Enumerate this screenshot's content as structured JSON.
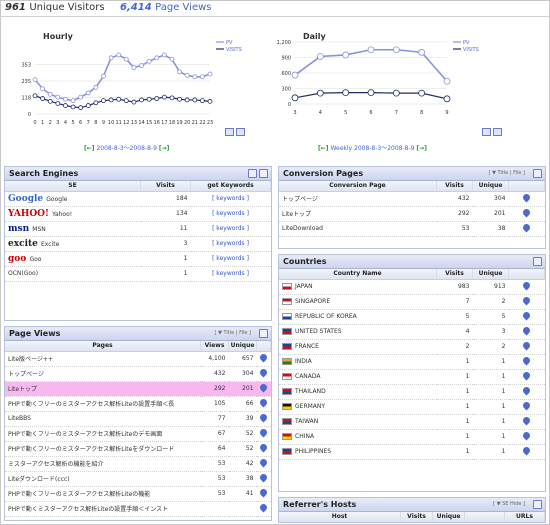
{
  "header": {
    "unique_visitors_count": "961",
    "unique_visitors_label": "Unique Visitors",
    "page_views_count": "6,414",
    "page_views_label": "Page Views"
  },
  "hourly_chart": {
    "title": "Hourly",
    "legend": [
      "PV",
      "VISITS"
    ],
    "range": "2008-8-3〜2008-8-9",
    "chart_data": {
      "type": "line",
      "x": [
        0,
        1,
        2,
        3,
        4,
        5,
        6,
        7,
        8,
        9,
        10,
        11,
        12,
        13,
        14,
        15,
        16,
        17,
        18,
        19,
        20,
        21,
        22,
        23
      ],
      "ylim": [
        0,
        470
      ],
      "yticks": [
        0,
        118,
        235,
        353
      ],
      "series": [
        {
          "name": "PV",
          "values": [
            245,
            180,
            140,
            120,
            105,
            95,
            120,
            150,
            190,
            270,
            400,
            420,
            390,
            330,
            345,
            375,
            400,
            420,
            390,
            300,
            275,
            265,
            265,
            285
          ]
        },
        {
          "name": "VISITS",
          "values": [
            130,
            110,
            90,
            75,
            60,
            50,
            45,
            60,
            80,
            95,
            100,
            105,
            95,
            85,
            100,
            105,
            110,
            120,
            115,
            105,
            100,
            100,
            95,
            90
          ]
        }
      ]
    }
  },
  "daily_chart": {
    "title": "Daily",
    "legend": [
      "PV",
      "VISITS"
    ],
    "range": "Weekly 2008-8-3〜2008-8-9",
    "chart_data": {
      "type": "line",
      "x": [
        3,
        4,
        5,
        6,
        7,
        8,
        9
      ],
      "ylim": [
        0,
        1200
      ],
      "yticks": [
        0,
        300,
        600,
        900,
        1200
      ],
      "series": [
        {
          "name": "PV",
          "values": [
            560,
            920,
            950,
            1050,
            1050,
            1000,
            440
          ]
        },
        {
          "name": "VISITS",
          "values": [
            120,
            210,
            220,
            220,
            210,
            210,
            100
          ]
        }
      ]
    }
  },
  "search_engines": {
    "title": "Search Engines",
    "columns": [
      "SE",
      "Visits",
      "get Keywords"
    ],
    "rows": [
      {
        "logo": "Google",
        "name": "Google",
        "visits": "184",
        "kw": "[ keywords ]"
      },
      {
        "logo": "YAHOO!",
        "name": "Yahoo!",
        "visits": "134",
        "kw": "[ keywords ]"
      },
      {
        "logo": "msn",
        "name": "MSN",
        "visits": "11",
        "kw": "[ keywords ]"
      },
      {
        "logo": "excite",
        "name": "Excite",
        "visits": "3",
        "kw": "[ keywords ]"
      },
      {
        "logo": "goo",
        "name": "Goo",
        "visits": "1",
        "kw": "[ keywords ]"
      },
      {
        "logo": "",
        "name": "OCN(Goo)",
        "visits": "1",
        "kw": "[ keywords ]"
      }
    ]
  },
  "conversion_pages": {
    "title": "Conversion Pages",
    "sort": "[ ▼ Title | File ]",
    "columns": [
      "Conversion Page",
      "Visits",
      "Unique"
    ],
    "rows": [
      {
        "page": "トップページ",
        "visits": "432",
        "unique": "304"
      },
      {
        "page": "Liteトップ",
        "visits": "292",
        "unique": "201"
      },
      {
        "page": "LiteDownload",
        "visits": "53",
        "unique": "38"
      }
    ]
  },
  "countries": {
    "title": "Countries",
    "columns": [
      "Country Name",
      "Visits",
      "Unique"
    ],
    "rows": [
      {
        "name": "JAPAN",
        "visits": "983",
        "unique": "913",
        "flag": "#ffffff",
        "flag2": "#d01010"
      },
      {
        "name": "SINGAPORE",
        "visits": "7",
        "unique": "2",
        "flag": "#d01010",
        "flag2": "#ffffff"
      },
      {
        "name": "REPUBLIC OF KOREA",
        "visits": "5",
        "unique": "5",
        "flag": "#ffffff",
        "flag2": "#2040a0"
      },
      {
        "name": "UNITED STATES",
        "visits": "4",
        "unique": "3",
        "flag": "#2040a0",
        "flag2": "#d01010"
      },
      {
        "name": "FRANCE",
        "visits": "2",
        "unique": "2",
        "flag": "#2040a0",
        "flag2": "#d01010"
      },
      {
        "name": "INDIA",
        "visits": "1",
        "unique": "1",
        "flag": "#ff9933",
        "flag2": "#138808"
      },
      {
        "name": "CANADA",
        "visits": "1",
        "unique": "1",
        "flag": "#d01010",
        "flag2": "#ffffff"
      },
      {
        "name": "THAILAND",
        "visits": "1",
        "unique": "1",
        "flag": "#d01010",
        "flag2": "#2040a0"
      },
      {
        "name": "GERMANY",
        "visits": "1",
        "unique": "1",
        "flag": "#111111",
        "flag2": "#ffcc00"
      },
      {
        "name": "TAIWAN",
        "visits": "1",
        "unique": "1",
        "flag": "#d01010",
        "flag2": "#2040a0"
      },
      {
        "name": "CHINA",
        "visits": "1",
        "unique": "1",
        "flag": "#d01010",
        "flag2": "#ffde00"
      },
      {
        "name": "PHILIPPINES",
        "visits": "1",
        "unique": "1",
        "flag": "#2040a0",
        "flag2": "#d01010"
      }
    ]
  },
  "page_views": {
    "title": "Page Views",
    "sort": "[ ▼ Title | File ]",
    "columns": [
      "Pages",
      "Views",
      "Unique"
    ],
    "rows": [
      {
        "page": "Lite版ページ++",
        "views": "4,100",
        "unique": "657"
      },
      {
        "page": "トップページ",
        "views": "432",
        "unique": "304"
      },
      {
        "page": "Liteトップ",
        "views": "292",
        "unique": "201"
      },
      {
        "page": "PHPで動くフリーのミスターアクセス解析Liteの設置手順＜長",
        "views": "105",
        "unique": "66"
      },
      {
        "page": "LiteBBS",
        "views": "77",
        "unique": "39"
      },
      {
        "page": "PHPで動くフリーのミスターアクセス解析Liteのデモ画面",
        "views": "67",
        "unique": "52"
      },
      {
        "page": "PHPで動くフリーのミスターアクセス解析Liteをダウンロード",
        "views": "64",
        "unique": "52"
      },
      {
        "page": "ミスターアクセス解析の機能を紹介",
        "views": "53",
        "unique": "42"
      },
      {
        "page": "Liteダウンロード(ccc)",
        "views": "53",
        "unique": "38"
      },
      {
        "page": "PHPで動くフリーのミスターアクセス解析Liteの機能",
        "views": "53",
        "unique": "41"
      },
      {
        "page": "PHPで動くミスターアクセス解析Liteの設置手順＜インスト",
        "views": "",
        "unique": ""
      }
    ]
  },
  "referrers": {
    "title": "Referrer's Hosts",
    "sort": "[ ▼ SE Hide ]",
    "columns": [
      "Host",
      "Visits",
      "Unique",
      "",
      "URLs"
    ]
  }
}
